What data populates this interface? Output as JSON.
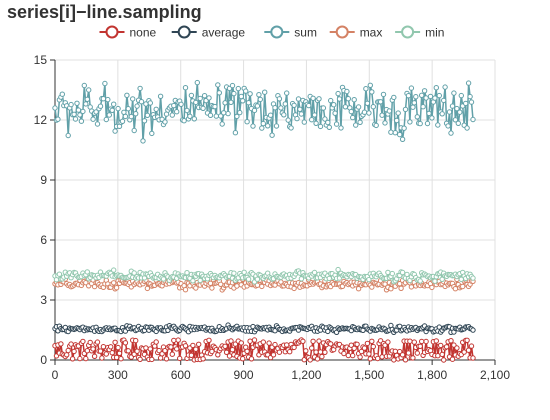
{
  "chart_data": {
    "type": "line",
    "title": "series[i]−line.sampling",
    "xlabel": "",
    "ylabel": "",
    "xlim": [
      0,
      2100
    ],
    "ylim": [
      0,
      15
    ],
    "x_ticks": [
      "0",
      "300",
      "600",
      "900",
      "1,200",
      "1,500",
      "1,800",
      "2,100"
    ],
    "y_ticks": [
      "0",
      "3",
      "6",
      "9",
      "12",
      "15"
    ],
    "x_tick_values": [
      0,
      300,
      600,
      900,
      1200,
      1500,
      1800,
      2100
    ],
    "y_tick_values": [
      0,
      3,
      6,
      9,
      12,
      15
    ],
    "grid": true,
    "legend_position": "top-center",
    "point_count": 2000,
    "series": [
      {
        "name": "none",
        "color": "#c23531",
        "mean": 0.5,
        "min": 0.0,
        "max": 1.0
      },
      {
        "name": "average",
        "color": "#2f4554",
        "mean": 1.55,
        "min": 1.3,
        "max": 1.75
      },
      {
        "name": "sum",
        "color": "#61a0a8",
        "mean": 12.5,
        "min": 10.7,
        "max": 14.3
      },
      {
        "name": "max",
        "color": "#d48265",
        "mean": 3.8,
        "min": 3.4,
        "max": 4.1
      },
      {
        "name": "min",
        "color": "#91c7ae",
        "mean": 4.2,
        "min": 3.9,
        "max": 4.6
      }
    ]
  }
}
